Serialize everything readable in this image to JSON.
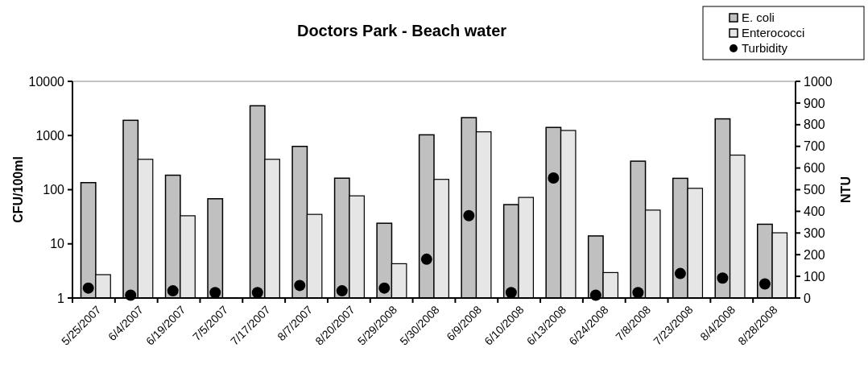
{
  "chart_data": {
    "type": "bar",
    "title": "Doctors Park - Beach water",
    "ylabel": "CFU/100ml",
    "y2label": "NTU",
    "categories": [
      "5/25/2007",
      "6/4/2007",
      "6/19/2007",
      "7/5/2007",
      "7/17/2007",
      "8/7/2007",
      "8/20/2007",
      "5/29/2008",
      "5/30/2008",
      "6/9/2008",
      "6/10/2008",
      "6/13/2008",
      "6/24/2008",
      "7/8/2008",
      "7/23/2008",
      "8/4/2008",
      "8/28/2008"
    ],
    "series": [
      {
        "name": "E. coli",
        "color": "#c0c0c0",
        "values": [
          135,
          1910,
          185,
          68,
          3540,
          630,
          163,
          24,
          1030,
          2140,
          53,
          1410,
          14,
          336,
          162,
          2030,
          23
        ]
      },
      {
        "name": "Enterococci",
        "color": "#e6e6e6",
        "values": [
          2.7,
          364,
          33,
          null,
          364,
          35,
          77,
          4.3,
          155,
          1170,
          72,
          1240,
          2.95,
          42,
          106,
          435,
          16
        ]
      },
      {
        "name": "Turbidity",
        "type": "scatter",
        "axis": "y2",
        "color": "#000000",
        "values": [
          46,
          13,
          33,
          25,
          25,
          58,
          33,
          46,
          179,
          380,
          25,
          554,
          13,
          25,
          113,
          92,
          65
        ]
      }
    ],
    "log": "y",
    "ylim": [
      1,
      10000
    ],
    "yticks": [
      1,
      10,
      100,
      1000,
      10000
    ],
    "y2lim": [
      0,
      1000
    ],
    "y2ticks": [
      0,
      100,
      200,
      300,
      400,
      500,
      600,
      700,
      800,
      900,
      1000
    ],
    "legend": "top right",
    "grid": false,
    "marker": "circle"
  }
}
